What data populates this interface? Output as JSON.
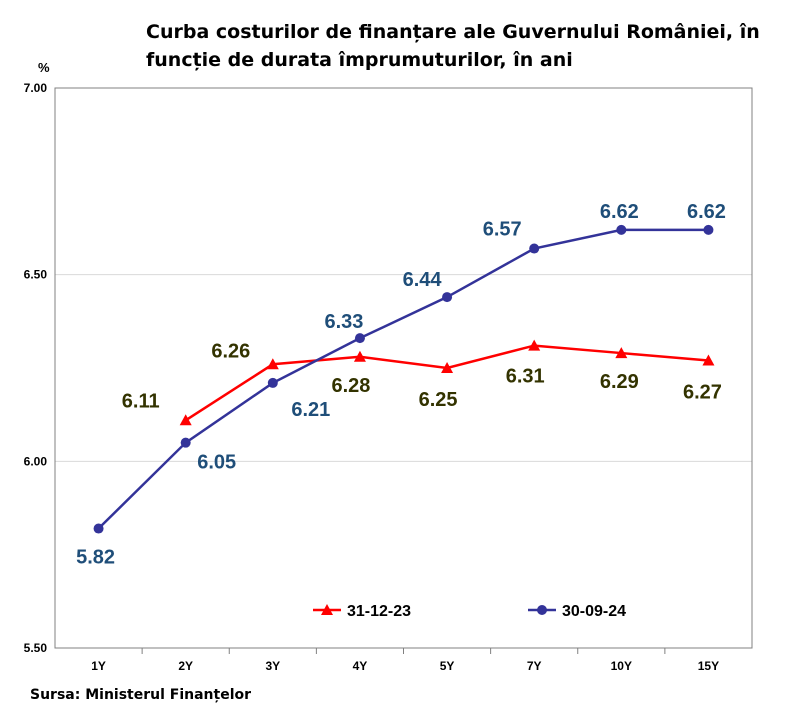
{
  "title": "Curba costurilor de finanțare ale Guvernului României, în funcție de durata împrumuturilor, în ani",
  "source": "Sursa: Ministerul Finanțelor",
  "chart_data": {
    "type": "line",
    "title": "Curba costurilor de finanțare ale Guvernului României, în funcție de durata împrumuturilor, în ani",
    "ylabel": "%",
    "xlabel": "",
    "categories": [
      "1Y",
      "2Y",
      "3Y",
      "4Y",
      "5Y",
      "7Y",
      "10Y",
      "15Y"
    ],
    "ylim": [
      5.5,
      7.0
    ],
    "yticks": [
      "5.50",
      "6.00",
      "6.50",
      "7.00"
    ],
    "grid": true,
    "legend_position": "bottom",
    "series": [
      {
        "name": "31-12-23",
        "color": "#ff0000",
        "marker": "triangle",
        "values": [
          null,
          6.11,
          6.26,
          6.28,
          6.25,
          6.31,
          6.29,
          6.27
        ],
        "labels": [
          null,
          "6.11",
          "6.26",
          "6.28",
          "6.25",
          "6.31",
          "6.29",
          "6.27"
        ],
        "label_color": "#333300"
      },
      {
        "name": "30-09-24",
        "color": "#333399",
        "marker": "circle",
        "values": [
          5.82,
          6.05,
          6.21,
          6.33,
          6.44,
          6.57,
          6.62,
          6.62
        ],
        "labels": [
          "5.82",
          "6.05",
          "6.21",
          "6.33",
          "6.44",
          "6.57",
          "6.62",
          "6.62"
        ],
        "label_color": "#1f4e79"
      }
    ]
  }
}
